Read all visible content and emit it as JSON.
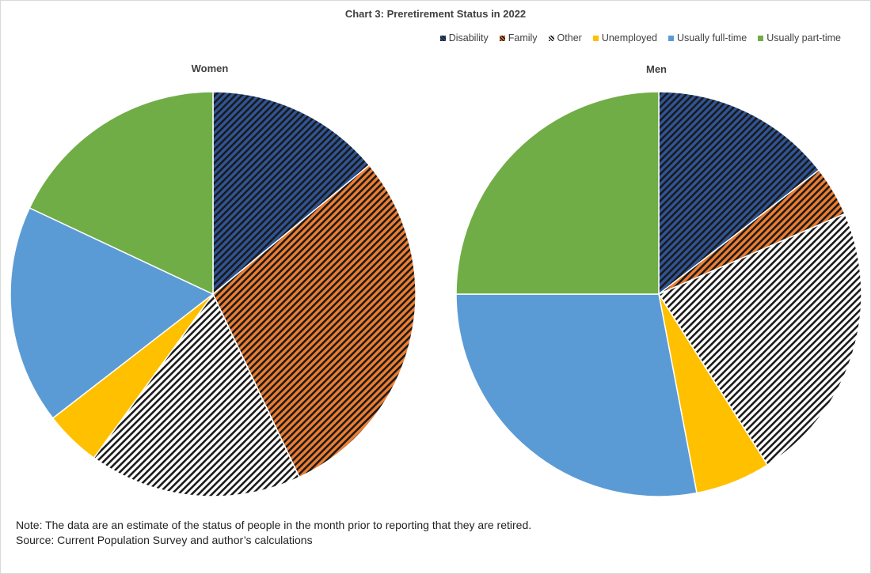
{
  "chart_data": {
    "type": "pie",
    "title": "Chart 3:  Preretirement Status in 2022",
    "legend_position": "top-right",
    "legend": [
      {
        "name": "Disability",
        "color": "#2f5597",
        "pattern": "hatch-dark"
      },
      {
        "name": "Family",
        "color": "#ed7d31",
        "pattern": "hatch-dark"
      },
      {
        "name": "Other",
        "color": "#ffffff",
        "pattern": "hatch-dark"
      },
      {
        "name": "Unemployed",
        "color": "#ffc000",
        "pattern": "solid"
      },
      {
        "name": "Usually full-time",
        "color": "#5b9bd5",
        "pattern": "solid"
      },
      {
        "name": "Usually part-time",
        "color": "#70ad47",
        "pattern": "solid"
      }
    ],
    "pies": [
      {
        "name": "Women",
        "slices": [
          {
            "label": "Disability",
            "value": 14
          },
          {
            "label": "Family",
            "value": 29
          },
          {
            "label": "Other",
            "value": 17
          },
          {
            "label": "Unemployed",
            "value": 4.5
          },
          {
            "label": "Usually full-time",
            "value": 17.5
          },
          {
            "label": "Usually part-time",
            "value": 18
          }
        ]
      },
      {
        "name": "Men",
        "slices": [
          {
            "label": "Disability",
            "value": 14.5
          },
          {
            "label": "Family",
            "value": 4
          },
          {
            "label": "Other",
            "value": 22.5
          },
          {
            "label": "Unemployed",
            "value": 6
          },
          {
            "label": "Usually full-time",
            "value": 28
          },
          {
            "label": "Usually part-time",
            "value": 25
          }
        ]
      }
    ]
  },
  "notes": {
    "line1": "Note: The data are an estimate of the status of people in the month prior to reporting that they are retired.",
    "line2": "Source: Current Population Survey and author’s calculations"
  }
}
